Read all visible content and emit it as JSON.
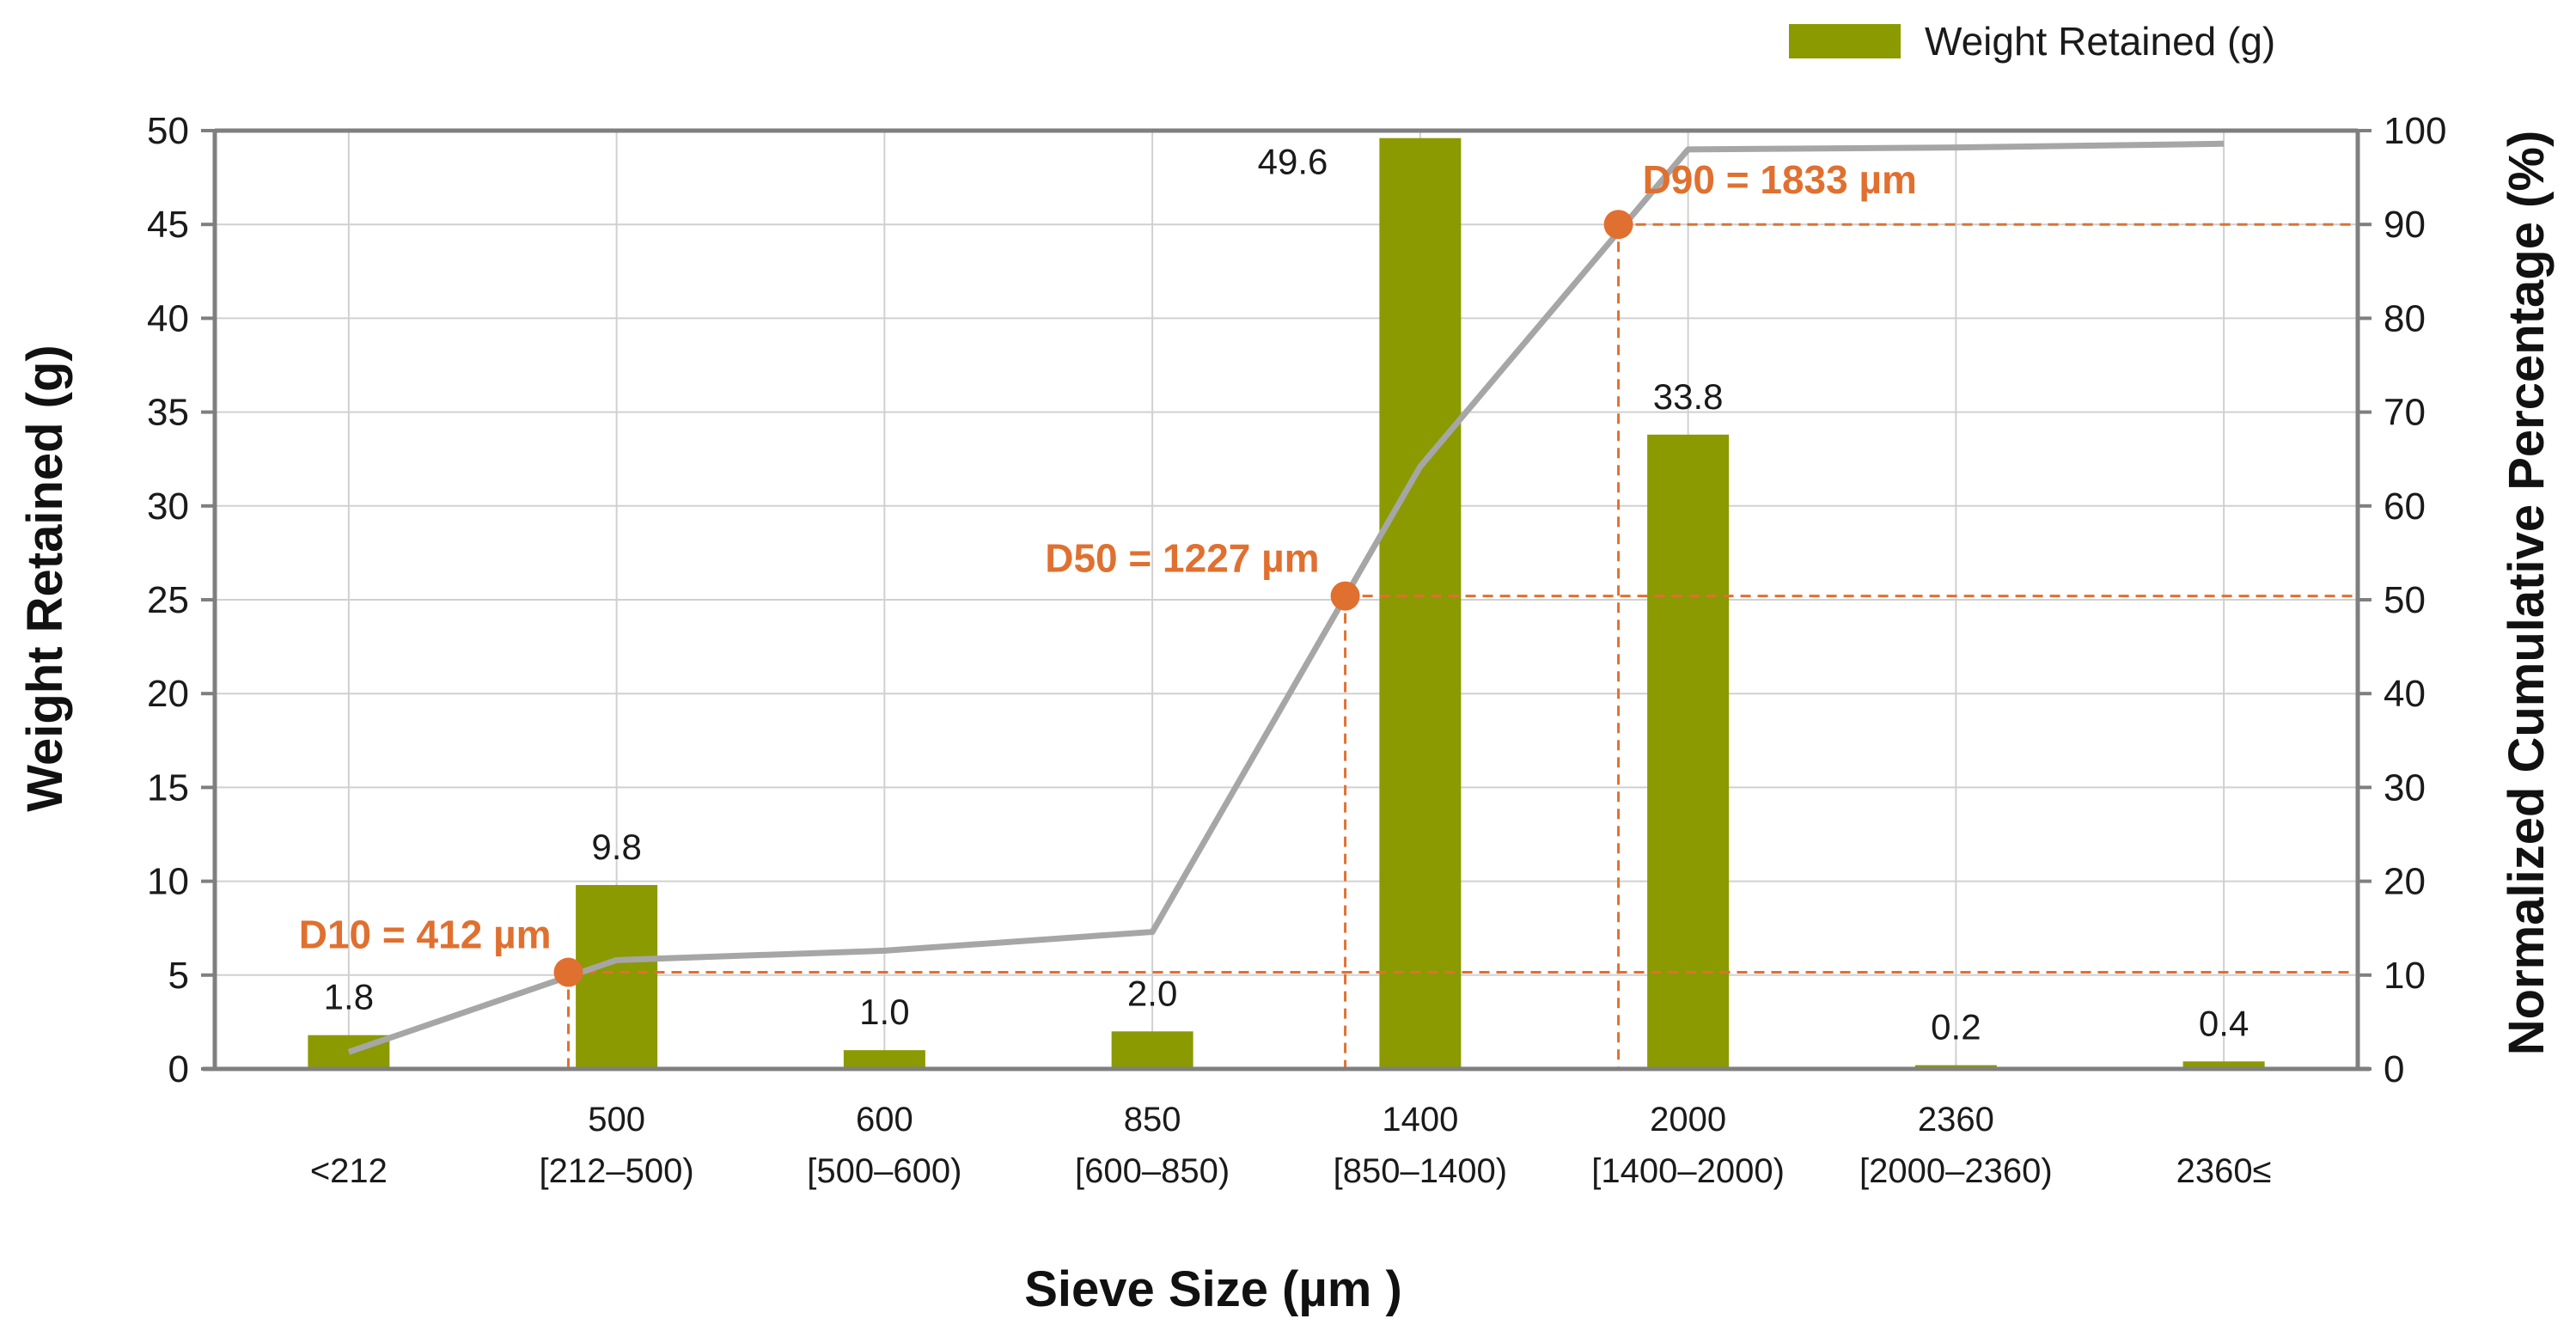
{
  "chart_data": {
    "type": "bar",
    "colors": {
      "bar": "#8a9a00",
      "line": "#a6a6a6",
      "marker": "#e07030",
      "grid": "#d0d0d0",
      "axis": "#7f7f7f"
    },
    "categories": [
      {
        "top": "",
        "bottom": "<212"
      },
      {
        "top": "500",
        "bottom": "[212–500)"
      },
      {
        "top": "600",
        "bottom": "[500–600)"
      },
      {
        "top": "850",
        "bottom": "[600–850)"
      },
      {
        "top": "1400",
        "bottom": "[850–1400)"
      },
      {
        "top": "2000",
        "bottom": "[1400–2000)"
      },
      {
        "top": "2360",
        "bottom": "[2000–2360)"
      },
      {
        "top": "",
        "bottom": "2360≤"
      }
    ],
    "series": [
      {
        "name": "Weight Retained (g)",
        "axis": "left",
        "values": [
          1.8,
          9.8,
          1.0,
          2.0,
          49.6,
          33.8,
          0.2,
          0.4
        ],
        "labels": [
          "1.8",
          "9.8",
          "1.0",
          "2.0",
          "49.6",
          "33.8",
          "0.2",
          "0.4"
        ]
      },
      {
        "name": "Normalized Cumulative Percentage",
        "axis": "right",
        "type": "line",
        "values": [
          1.8,
          11.6,
          12.6,
          14.6,
          64.2,
          98.0,
          98.2,
          98.6
        ]
      }
    ],
    "markers": [
      {
        "label": "D10 = 412 µm",
        "x_cat": 0.82,
        "pct": 10.3
      },
      {
        "label": "D50 = 1227 µm",
        "x_cat": 3.72,
        "pct": 50.4
      },
      {
        "label": "D90 = 1833 µm",
        "x_cat": 4.74,
        "pct": 90
      }
    ],
    "xlabel": "Sieve Size (µm )",
    "ylabel": "Weight Retained (g)",
    "y2label": "Normalized Cumulative Percentage (%)",
    "ylim": [
      0,
      50
    ],
    "yticks": [
      "0",
      "5",
      "10",
      "15",
      "20",
      "25",
      "30",
      "35",
      "40",
      "45",
      "50"
    ],
    "y2lim": [
      0,
      100
    ],
    "y2ticks": [
      "0",
      "10",
      "20",
      "30",
      "40",
      "50",
      "60",
      "70",
      "80",
      "90",
      "100"
    ],
    "legend": {
      "position": "top-right",
      "label": "Weight Retained (g)"
    }
  }
}
